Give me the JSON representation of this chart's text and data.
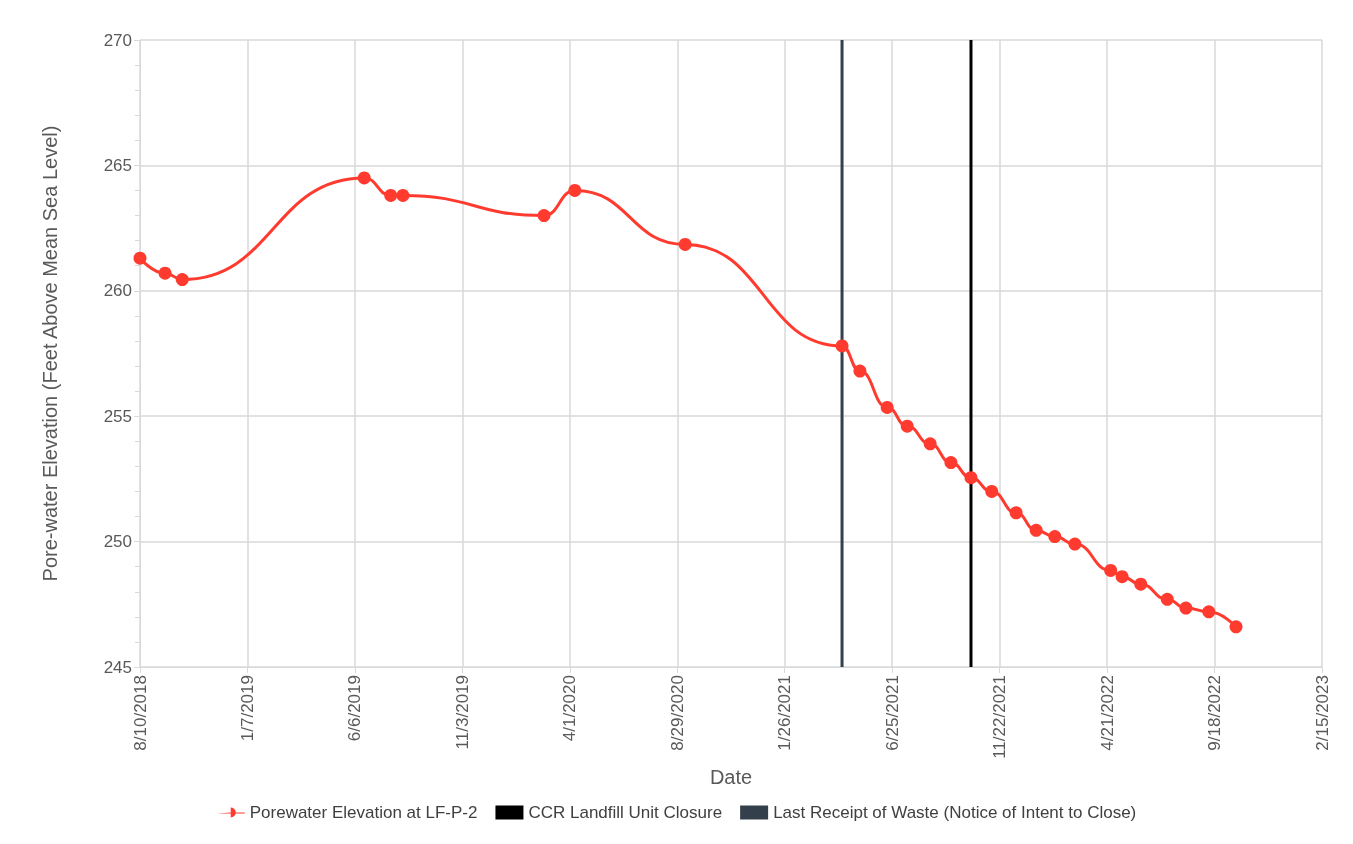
{
  "chart_data": {
    "type": "line",
    "xlabel": "Date",
    "ylabel": "Pore-water Elevation (Feet Above Mean Sea Level)",
    "x": [
      "2018-08-10",
      "2018-09-14",
      "2018-10-08",
      "2019-06-19",
      "2019-07-26",
      "2019-08-12",
      "2020-02-25",
      "2020-04-08",
      "2020-09-09",
      "2021-04-16",
      "2021-05-11",
      "2021-06-18",
      "2021-07-16",
      "2021-08-17",
      "2021-09-15",
      "2021-10-13",
      "2021-11-11",
      "2021-12-15",
      "2022-01-12",
      "2022-02-07",
      "2022-03-07",
      "2022-04-26",
      "2022-05-12",
      "2022-06-07",
      "2022-07-14",
      "2022-08-09",
      "2022-09-10",
      "2022-10-18"
    ],
    "series": [
      {
        "name": "Porewater Elevation at LF-P-2",
        "color": "#ff3b30",
        "values": [
          261.3,
          260.7,
          260.45,
          264.5,
          263.8,
          263.8,
          263.0,
          264.0,
          261.85,
          257.8,
          256.8,
          255.35,
          254.6,
          253.9,
          253.15,
          252.55,
          252.0,
          251.15,
          250.45,
          250.2,
          249.9,
          248.85,
          248.6,
          248.3,
          247.7,
          247.35,
          247.2,
          246.6
        ]
      }
    ],
    "marker": "circle",
    "line_style": "solid",
    "ref_lines": [
      {
        "axis": "x",
        "value": "2021-10-13",
        "label": "CCR Landfill Unit Closure",
        "color": "#000000"
      },
      {
        "axis": "x",
        "value": "2021-04-16",
        "label": "Last Receipt of Waste (Notice of Intent to Close)",
        "color": "#333f4b"
      }
    ],
    "xlim": [
      "2018-08-10",
      "2023-02-15"
    ],
    "xticks": [
      {
        "value": "2018-08-10",
        "label": "8/10/2018"
      },
      {
        "value": "2019-01-07",
        "label": "1/7/2019"
      },
      {
        "value": "2019-06-06",
        "label": "6/6/2019"
      },
      {
        "value": "2019-11-03",
        "label": "11/3/2019"
      },
      {
        "value": "2020-04-01",
        "label": "4/1/2020"
      },
      {
        "value": "2020-08-29",
        "label": "8/29/2020"
      },
      {
        "value": "2021-01-26",
        "label": "1/26/2021"
      },
      {
        "value": "2021-06-25",
        "label": "6/25/2021"
      },
      {
        "value": "2021-11-22",
        "label": "11/22/2021"
      },
      {
        "value": "2022-04-21",
        "label": "4/21/2022"
      },
      {
        "value": "2022-09-18",
        "label": "9/18/2022"
      },
      {
        "value": "2023-02-15",
        "label": "2/15/2023"
      }
    ],
    "ylim": [
      245,
      270
    ],
    "yticks": [
      245,
      250,
      255,
      260,
      265,
      270
    ],
    "grid": true,
    "legend": "bottom"
  }
}
